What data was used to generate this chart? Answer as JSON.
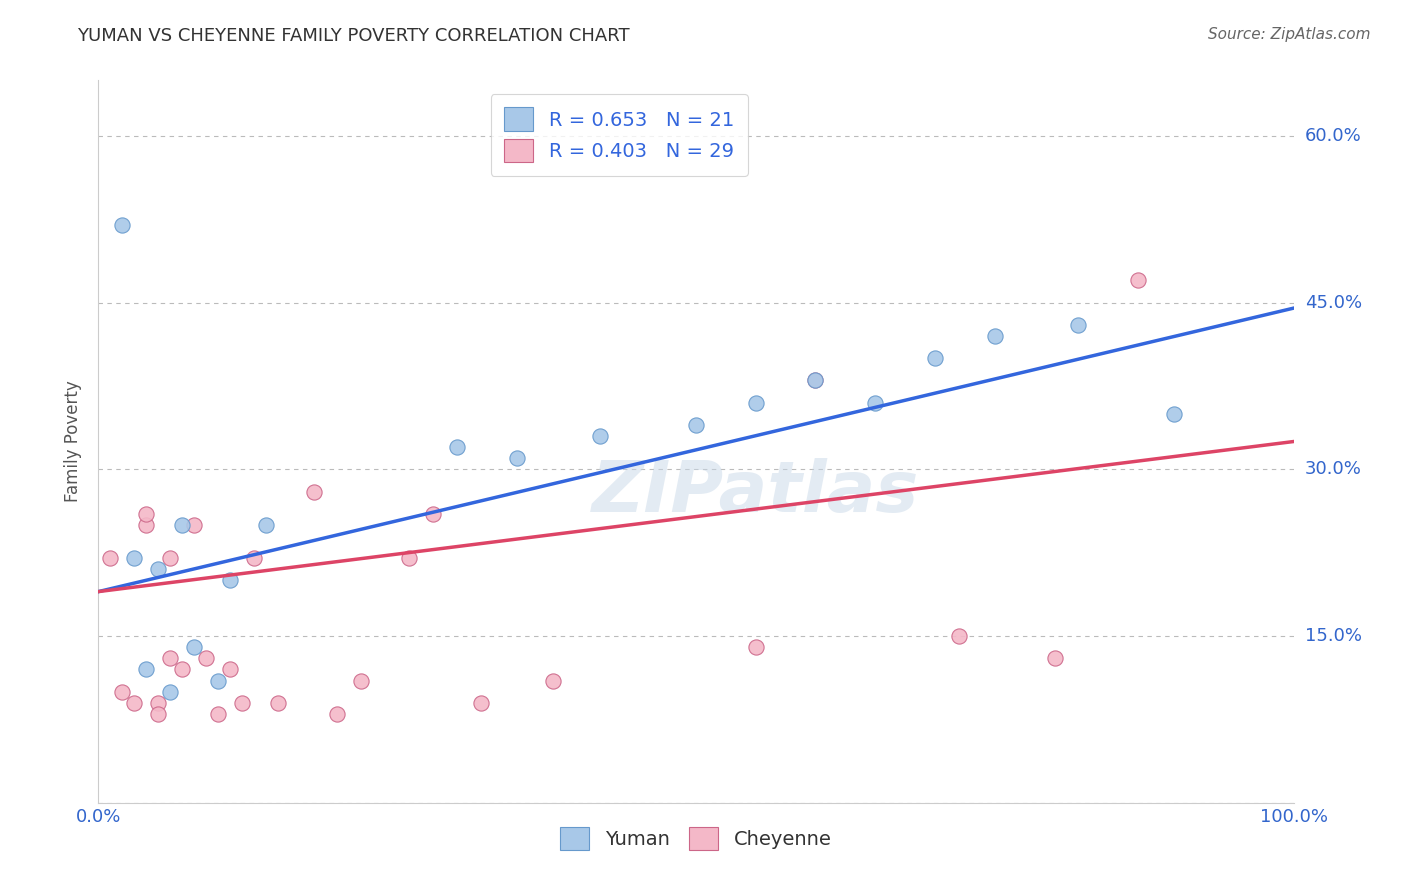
{
  "title": "YUMAN VS CHEYENNE FAMILY POVERTY CORRELATION CHART",
  "source": "Source: ZipAtlas.com",
  "ylabel": "Family Poverty",
  "xlim": [
    0,
    1.0
  ],
  "ylim": [
    0,
    0.65
  ],
  "xticks": [
    0.0,
    0.25,
    0.5,
    0.75,
    1.0
  ],
  "xticklabels": [
    "0.0%",
    "",
    "",
    "",
    "100.0%"
  ],
  "ytick_values": [
    0.0,
    0.15,
    0.3,
    0.45,
    0.6
  ],
  "ytick_labels": [
    "",
    "15.0%",
    "30.0%",
    "45.0%",
    "60.0%"
  ],
  "yuman_color": "#a8c8e8",
  "cheyenne_color": "#f4b8c8",
  "yuman_line_color": "#3366dd",
  "cheyenne_line_color": "#dd4466",
  "yuman_edge_color": "#6699cc",
  "cheyenne_edge_color": "#cc6688",
  "R_yuman": 0.653,
  "N_yuman": 21,
  "R_cheyenne": 0.403,
  "N_cheyenne": 29,
  "yuman_x": [
    0.02,
    0.03,
    0.04,
    0.05,
    0.06,
    0.07,
    0.08,
    0.1,
    0.11,
    0.14,
    0.3,
    0.35,
    0.42,
    0.5,
    0.55,
    0.6,
    0.65,
    0.7,
    0.75,
    0.82,
    0.9
  ],
  "yuman_y": [
    0.52,
    0.22,
    0.12,
    0.21,
    0.1,
    0.25,
    0.14,
    0.11,
    0.2,
    0.25,
    0.32,
    0.31,
    0.33,
    0.34,
    0.36,
    0.38,
    0.36,
    0.4,
    0.42,
    0.43,
    0.35
  ],
  "cheyenne_x": [
    0.01,
    0.02,
    0.03,
    0.04,
    0.04,
    0.05,
    0.05,
    0.06,
    0.06,
    0.07,
    0.08,
    0.09,
    0.1,
    0.11,
    0.12,
    0.13,
    0.15,
    0.18,
    0.2,
    0.22,
    0.26,
    0.28,
    0.32,
    0.38,
    0.55,
    0.6,
    0.72,
    0.8,
    0.87
  ],
  "cheyenne_y": [
    0.22,
    0.1,
    0.09,
    0.25,
    0.26,
    0.09,
    0.08,
    0.22,
    0.13,
    0.12,
    0.25,
    0.13,
    0.08,
    0.12,
    0.09,
    0.22,
    0.09,
    0.28,
    0.08,
    0.11,
    0.22,
    0.26,
    0.09,
    0.11,
    0.14,
    0.38,
    0.15,
    0.13,
    0.47
  ],
  "watermark": "ZIPatlas",
  "background_color": "#ffffff",
  "grid_color": "#bbbbbb",
  "title_fontsize": 13,
  "axis_fontsize": 12,
  "tick_fontsize": 13,
  "legend_fontsize": 14,
  "scatter_size": 120,
  "line_width": 2.5
}
